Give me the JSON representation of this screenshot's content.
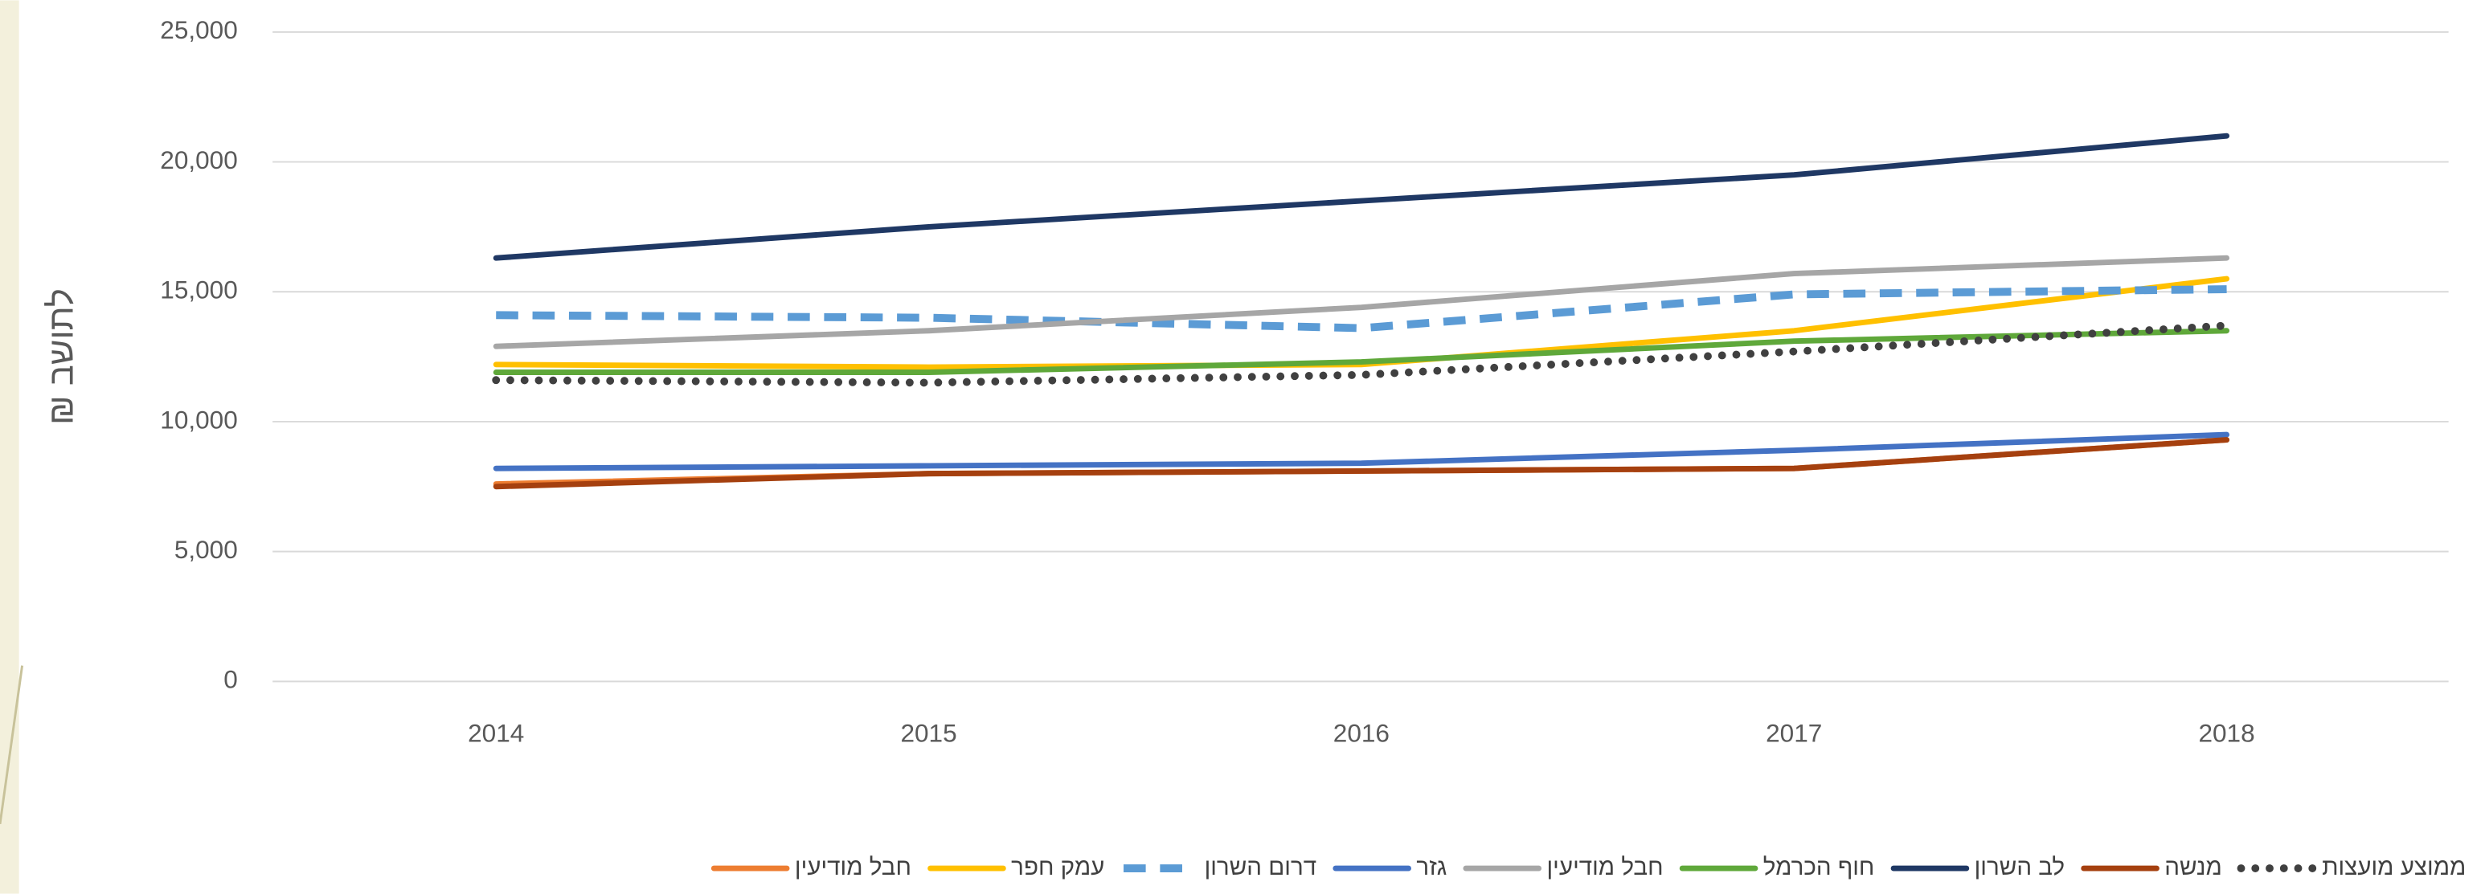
{
  "chart_data": {
    "type": "line",
    "y_label": "₪ לתושב",
    "categories": [
      "2014",
      "2015",
      "2016",
      "2017",
      "2018"
    ],
    "ylim": [
      0,
      25000
    ],
    "yticks": [
      0,
      {
        "value": 5000,
        "label": "5,000"
      },
      {
        "value": 10000,
        "label": "10,000"
      },
      {
        "value": 15000,
        "label": "15,000"
      },
      {
        "value": 20000,
        "label": "20,000"
      },
      {
        "value": 25000,
        "label": "25,000"
      }
    ],
    "grid": true,
    "legend": "bottom",
    "series": [
      {
        "name": "ממוצע מועצות",
        "color": "#404040",
        "style": "dotted",
        "values": [
          11600,
          11500,
          11800,
          12700,
          13700
        ]
      },
      {
        "name": "מנשה",
        "color": "#a5400f",
        "style": "solid",
        "values": [
          7500,
          8000,
          8100,
          8200,
          9300
        ]
      },
      {
        "name": "לב השרון",
        "color": "#1f3864",
        "style": "solid",
        "values": [
          16300,
          17500,
          18500,
          19500,
          21000
        ]
      },
      {
        "name": "חוף הכרמל",
        "color": "#5fa83a",
        "style": "solid",
        "values": [
          11900,
          11900,
          12300,
          13100,
          13500
        ]
      },
      {
        "name": "חבל מודיעין",
        "color": "#a6a6a6",
        "style": "solid",
        "values": [
          12900,
          13500,
          14400,
          15700,
          16300
        ]
      },
      {
        "name": "גזר",
        "color": "#4472c4",
        "style": "solid",
        "values": [
          8200,
          8300,
          8400,
          8900,
          9500
        ]
      },
      {
        "name": "דרום השרון",
        "color": "#5b9bd5",
        "style": "dashed",
        "values": [
          14100,
          14000,
          13600,
          14900,
          15100
        ]
      },
      {
        "name": "עמק חפר",
        "color": "#ffc000",
        "style": "solid",
        "values": [
          12200,
          12100,
          12200,
          13500,
          15500
        ]
      },
      {
        "name": "חבל מודיעין",
        "color": "#ed7d31",
        "style": "solid",
        "values": [
          7600,
          8000,
          8100,
          8200,
          9300
        ]
      }
    ]
  }
}
